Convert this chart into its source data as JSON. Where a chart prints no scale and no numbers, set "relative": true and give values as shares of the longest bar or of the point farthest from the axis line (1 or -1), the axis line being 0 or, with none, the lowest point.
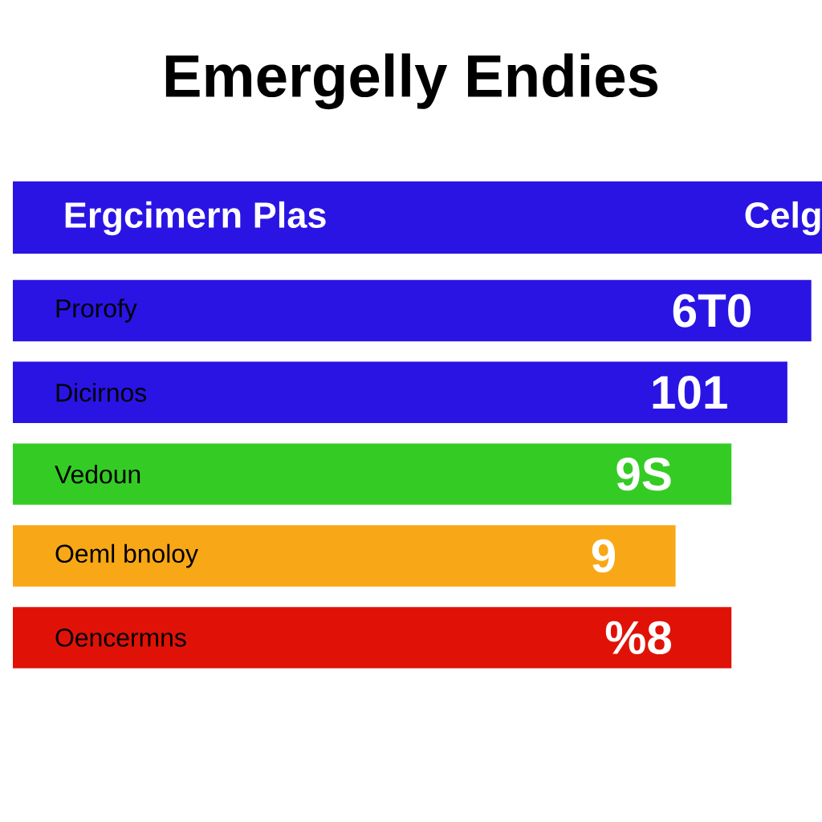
{
  "chart_data": {
    "type": "bar",
    "orientation": "horizontal",
    "relative": true,
    "title": "Emergelly Endies",
    "annotations": [
      "Ergcimern Plas",
      "Celg",
      "6T0",
      "101",
      "9S",
      "9",
      "%8"
    ],
    "categories": [
      "Prorofy",
      "Dicirnos",
      "Vedoun",
      "Oeml bnoloy",
      "Oencermns"
    ],
    "values": [
      1,
      0.97,
      0.9,
      0.83,
      0.9
    ],
    "colors": [
      "#2a14e4",
      "#2a14e4",
      "#34cc24",
      "#f8a816",
      "#e01208"
    ]
  }
}
